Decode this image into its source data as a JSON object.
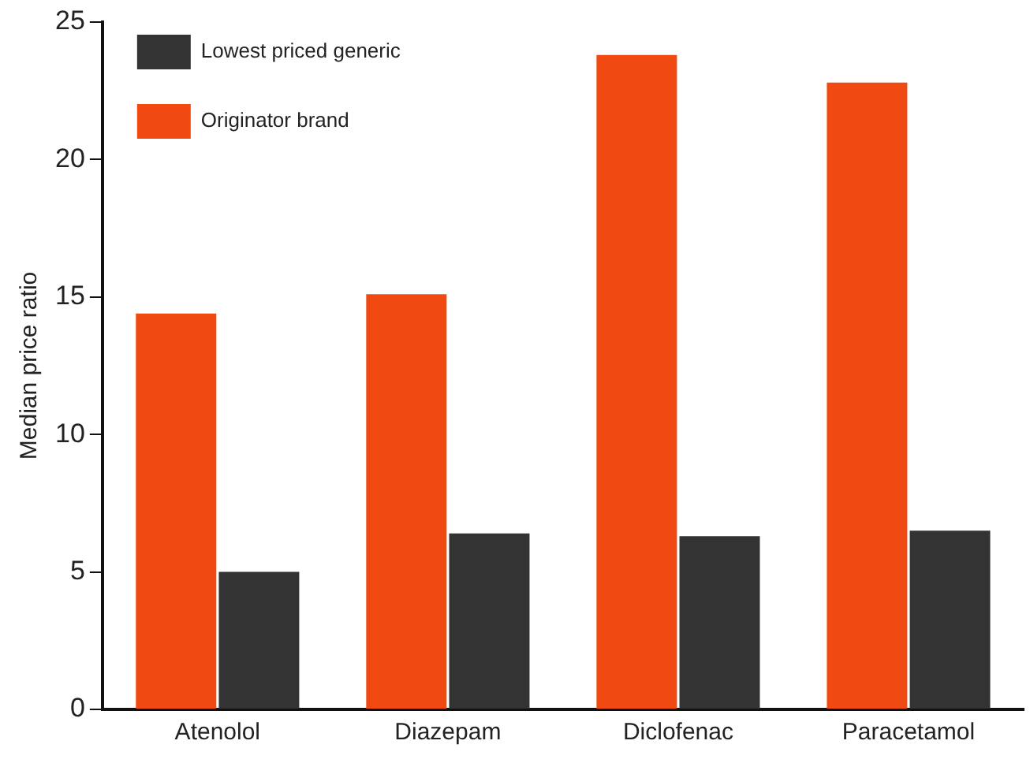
{
  "chart_data": {
    "type": "bar",
    "ylabel": "Median price ratio",
    "categories": [
      "Atenolol",
      "Diazepam",
      "Diclofenac",
      "Paracetamol"
    ],
    "series": [
      {
        "name": "Originator brand",
        "color": "#f04a12",
        "values": [
          14.4,
          15.1,
          23.8,
          22.8
        ]
      },
      {
        "name": "Lowest priced generic",
        "color": "#333333",
        "values": [
          5.0,
          6.4,
          6.3,
          6.5
        ]
      }
    ],
    "ylim": [
      0,
      25
    ],
    "yticks": [
      0,
      5,
      10,
      15,
      20,
      25
    ],
    "grid": false,
    "legend": "top left"
  }
}
